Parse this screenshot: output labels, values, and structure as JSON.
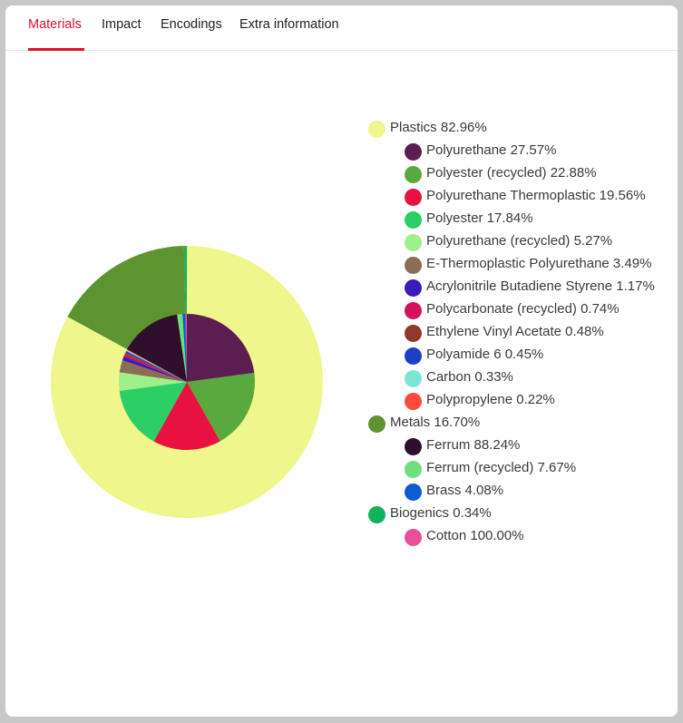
{
  "tabs": [
    {
      "label": "Materials",
      "active": true
    },
    {
      "label": "Impact",
      "active": false
    },
    {
      "label": "Encodings",
      "active": false
    },
    {
      "label": "Extra information",
      "active": false
    }
  ],
  "accent_color": "#d8102c",
  "chart_data": {
    "type": "pie",
    "outer": [
      {
        "label": "Plastics",
        "value": 82.96,
        "color": "#eff68b"
      },
      {
        "label": "Metals",
        "value": 16.7,
        "color": "#5e9430"
      },
      {
        "label": "Biogenics",
        "value": 0.34,
        "color": "#10b25a"
      }
    ],
    "inner": [
      {
        "label": "Polyurethane",
        "value": 22.87,
        "color": "#5c1d50"
      },
      {
        "label": "Polyester (recycled)",
        "value": 18.98,
        "color": "#5aa93d"
      },
      {
        "label": "Polyurethane Thermoplastic",
        "value": 16.23,
        "color": "#e8123f"
      },
      {
        "label": "Polyester",
        "value": 14.8,
        "color": "#2bcf66"
      },
      {
        "label": "Polyurethane (recycled)",
        "value": 4.37,
        "color": "#9df08a"
      },
      {
        "label": "E-Thermoplastic Polyurethane",
        "value": 2.9,
        "color": "#8c6c55"
      },
      {
        "label": "Acrylonitrile Butadiene Styrene",
        "value": 0.97,
        "color": "#3a1ab8"
      },
      {
        "label": "Polycarbonate (recycled)",
        "value": 0.61,
        "color": "#d4105a"
      },
      {
        "label": "Ethylene Vinyl Acetate",
        "value": 0.4,
        "color": "#8f3a2c"
      },
      {
        "label": "Polyamide 6",
        "value": 0.37,
        "color": "#1c3fc4"
      },
      {
        "label": "Carbon",
        "value": 0.27,
        "color": "#7be6d5"
      },
      {
        "label": "Polypropylene",
        "value": 0.18,
        "color": "#ff4a3a"
      },
      {
        "label": "Ferrum",
        "value": 14.74,
        "color": "#2e0f2c"
      },
      {
        "label": "Ferrum (recycled)",
        "value": 1.28,
        "color": "#6de07c"
      },
      {
        "label": "Brass",
        "value": 0.68,
        "color": "#0a5cd0"
      },
      {
        "label": "Cotton",
        "value": 0.34,
        "color": "#ea4f9a"
      }
    ]
  },
  "legend": [
    {
      "label": "Plastics 82.96%",
      "color": "#eff68b",
      "items": [
        {
          "label": "Polyurethane 27.57%",
          "color": "#5c1d50"
        },
        {
          "label": "Polyester (recycled) 22.88%",
          "color": "#5aa93d"
        },
        {
          "label": "Polyurethane Thermoplastic 19.56%",
          "color": "#e8123f"
        },
        {
          "label": "Polyester 17.84%",
          "color": "#2bcf66"
        },
        {
          "label": "Polyurethane (recycled) 5.27%",
          "color": "#9df08a"
        },
        {
          "label": "E-Thermoplastic Polyurethane 3.49%",
          "color": "#8c6c55"
        },
        {
          "label": "Acrylonitrile Butadiene Styrene 1.17%",
          "color": "#3a1ab8"
        },
        {
          "label": "Polycarbonate (recycled) 0.74%",
          "color": "#d4105a"
        },
        {
          "label": "Ethylene Vinyl Acetate 0.48%",
          "color": "#8f3a2c"
        },
        {
          "label": "Polyamide 6 0.45%",
          "color": "#1c3fc4"
        },
        {
          "label": "Carbon 0.33%",
          "color": "#7be6d5"
        },
        {
          "label": "Polypropylene 0.22%",
          "color": "#ff4a3a"
        }
      ]
    },
    {
      "label": "Metals 16.70%",
      "color": "#5e9430",
      "items": [
        {
          "label": "Ferrum 88.24%",
          "color": "#2e0f2c"
        },
        {
          "label": "Ferrum (recycled) 7.67%",
          "color": "#6de07c"
        },
        {
          "label": "Brass 4.08%",
          "color": "#0a5cd0"
        }
      ]
    },
    {
      "label": "Biogenics 0.34%",
      "color": "#10b25a",
      "items": [
        {
          "label": "Cotton 100.00%",
          "color": "#ea4f9a"
        }
      ]
    }
  ]
}
